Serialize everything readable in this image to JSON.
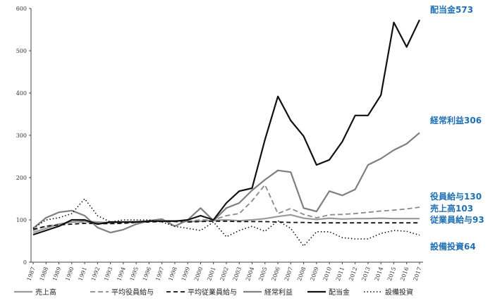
{
  "chart_data": {
    "type": "line",
    "title": "",
    "xlabel": "",
    "ylabel": "",
    "ylim": [
      0,
      600
    ],
    "yticks": [
      0,
      100,
      200,
      300,
      400,
      500,
      600
    ],
    "grid": false,
    "legend_position": "bottom",
    "x": [
      "1987",
      "1988",
      "1989",
      "1990",
      "1991",
      "1992",
      "1993",
      "1994",
      "1995",
      "1996",
      "1997",
      "1998",
      "1999",
      "2000",
      "2001",
      "2002",
      "2003",
      "2004",
      "2005",
      "2006",
      "2007",
      "2008",
      "2009",
      "2010",
      "2011",
      "2012",
      "2013",
      "2014",
      "2015",
      "2016",
      "2017"
    ],
    "series": [
      {
        "name": "売上高",
        "style": "solid-gray",
        "values": [
          70,
          80,
          90,
          95,
          97,
          95,
          93,
          95,
          96,
          97,
          98,
          98,
          96,
          97,
          99,
          100,
          98,
          100,
          103,
          108,
          112,
          104,
          101,
          104,
          102,
          103,
          103,
          104,
          103,
          103,
          103
        ]
      },
      {
        "name": "平均役員給与",
        "style": "dashed-gray",
        "values": [
          75,
          85,
          90,
          95,
          95,
          93,
          92,
          93,
          95,
          98,
          98,
          97,
          97,
          100,
          100,
          110,
          115,
          145,
          183,
          115,
          127,
          113,
          105,
          112,
          113,
          115,
          118,
          121,
          123,
          126,
          130
        ]
      },
      {
        "name": "平均従業員給与",
        "style": "dashed-black",
        "values": [
          78,
          85,
          88,
          90,
          92,
          91,
          91,
          92,
          94,
          95,
          96,
          96,
          95,
          96,
          97,
          97,
          96,
          96,
          96,
          95,
          94,
          94,
          93,
          93,
          93,
          93,
          93,
          93,
          93,
          93,
          93
        ]
      },
      {
        "name": "経常利益",
        "style": "solid-gray-thick",
        "values": [
          80,
          105,
          118,
          122,
          110,
          82,
          70,
          77,
          90,
          98,
          102,
          85,
          100,
          128,
          98,
          128,
          140,
          170,
          195,
          217,
          213,
          128,
          120,
          168,
          158,
          172,
          230,
          245,
          265,
          280,
          306
        ]
      },
      {
        "name": "配当金",
        "style": "solid-black",
        "values": [
          65,
          75,
          85,
          100,
          100,
          90,
          95,
          95,
          95,
          97,
          97,
          97,
          100,
          110,
          100,
          140,
          168,
          175,
          290,
          392,
          335,
          298,
          230,
          242,
          285,
          347,
          347,
          395,
          567,
          509,
          573
        ]
      },
      {
        "name": "設備投資",
        "style": "dotted-black",
        "values": [
          80,
          100,
          105,
          115,
          150,
          110,
          95,
          100,
          100,
          100,
          95,
          85,
          80,
          75,
          95,
          60,
          75,
          85,
          73,
          98,
          80,
          38,
          72,
          72,
          58,
          55,
          55,
          68,
          75,
          73,
          64
        ]
      }
    ],
    "end_labels": [
      {
        "text": "配当金573",
        "value": 573
      },
      {
        "text": "経常利益306",
        "value": 306
      },
      {
        "text": "役員給与130",
        "value": 130
      },
      {
        "text": "売上高103",
        "value": 103
      },
      {
        "text": "従業員給与93",
        "value": 93
      },
      {
        "text": "設備投資64",
        "value": 64
      }
    ],
    "colors": {
      "end_label": "#1f6fb5",
      "axis": "#444444",
      "black": "#111111",
      "gray": "#8a8a8a"
    }
  }
}
